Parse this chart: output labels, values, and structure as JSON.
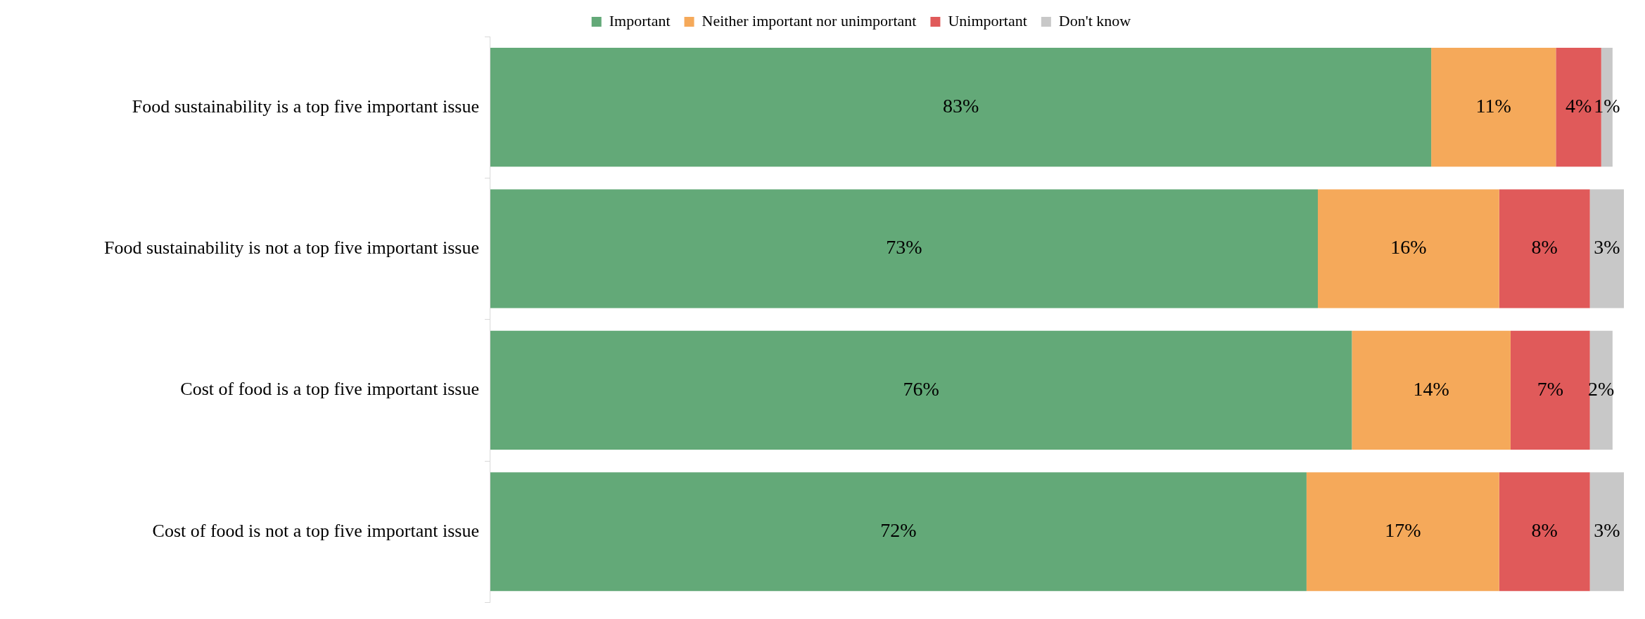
{
  "chart_data": {
    "type": "bar",
    "orientation": "horizontal",
    "stacked": true,
    "categories": [
      "Food sustainability is a top five important issue",
      "Food sustainability is not a top five important issue",
      "Cost of food is a top five important issue",
      "Cost of food is not a top five important issue"
    ],
    "series": [
      {
        "name": "Important",
        "color": "#63a978",
        "values": [
          83,
          73,
          76,
          72
        ],
        "value_labels": [
          "83%",
          "73%",
          "76%",
          "72%"
        ]
      },
      {
        "name": "Neither important nor unimportant",
        "color": "#f5a95a",
        "values": [
          11,
          16,
          14,
          17
        ],
        "value_labels": [
          "11%",
          "16%",
          "14%",
          "17%"
        ]
      },
      {
        "name": "Unimportant",
        "color": "#e05a5a",
        "values": [
          4,
          8,
          7,
          8
        ],
        "value_labels": [
          "4%",
          "8%",
          "7%",
          "8%"
        ]
      },
      {
        "name": "Don't know",
        "color": "#c8c8c8",
        "values": [
          1,
          3,
          2,
          3
        ],
        "value_labels": [
          "1%",
          "3%",
          "2%",
          "3%"
        ]
      }
    ],
    "legend": "top",
    "grid": false,
    "tick_labels": "y"
  }
}
